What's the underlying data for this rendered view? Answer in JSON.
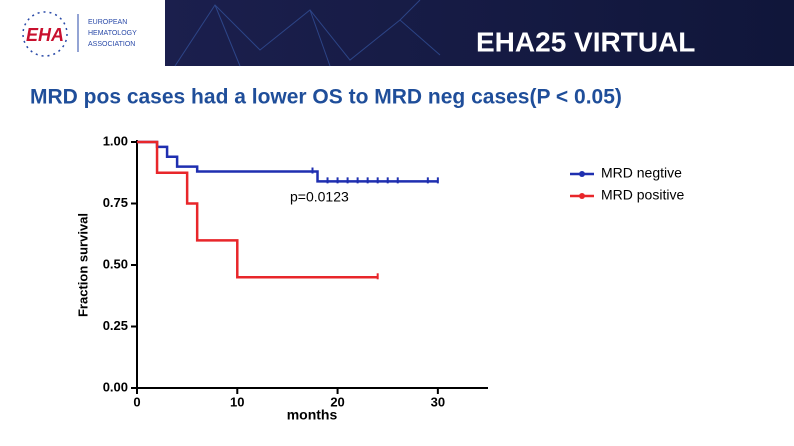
{
  "header": {
    "logo": "EHA",
    "org_lines": [
      "EUROPEAN",
      "HEMATOLOGY",
      "ASSOCIATION"
    ],
    "event": "EHA25 VIRTUAL"
  },
  "slide_title": "MRD pos cases had a lower OS to MRD neg cases(P < 0.05)",
  "chart_data": {
    "type": "step",
    "xlabel": "months",
    "ylabel": "Fraction survival",
    "annotation": "p=0.0123",
    "xlim": [
      0,
      35
    ],
    "ylim": [
      0,
      1
    ],
    "xticks": [
      0,
      10,
      20,
      30
    ],
    "yticks": [
      {
        "value": 0,
        "label": "0.00"
      },
      {
        "value": 0.25,
        "label": "0.25"
      },
      {
        "value": 0.5,
        "label": "0.50"
      },
      {
        "value": 0.75,
        "label": "0.75"
      },
      {
        "value": 1,
        "label": "1.00"
      }
    ],
    "legend": "right",
    "series": [
      {
        "name": "MRD negtive",
        "color": "#1f2fb0",
        "x": [
          0,
          2,
          3,
          4,
          6,
          18,
          30
        ],
        "values": [
          1,
          0.98,
          0.94,
          0.9,
          0.88,
          0.84,
          0.84
        ],
        "censored": [
          17.5,
          19,
          20,
          21,
          22,
          23,
          24,
          25,
          26,
          29,
          30
        ]
      },
      {
        "name": "MRD positive",
        "color": "#e8262a",
        "x": [
          0,
          2,
          5,
          6,
          10,
          24
        ],
        "values": [
          1,
          0.875,
          0.75,
          0.6,
          0.45,
          0.45
        ],
        "censored": [
          24
        ]
      }
    ]
  }
}
